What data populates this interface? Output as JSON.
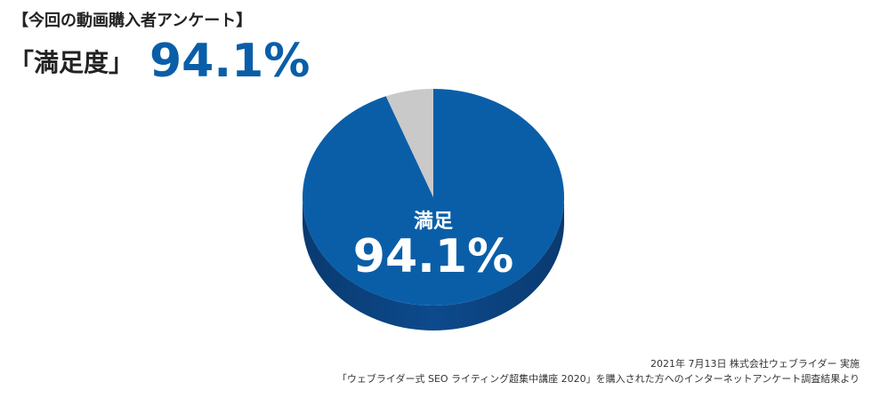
{
  "chart_data": {
    "type": "pie3d",
    "title": "【今回の動画購入者アンケート】",
    "subtitle": "「満足度」",
    "headline": "94.1%",
    "categories": [
      "満足",
      null
    ],
    "values": [
      94.1,
      5.9
    ],
    "value_labels": [
      "94.1%",
      null
    ],
    "colors": [
      "#0a5ea8",
      "#c9c9c9"
    ],
    "side_color": "#0b3f7a",
    "notes": [
      "2021年 7月13日 株式会社ウェブライダー 実施",
      "「ウェブライダー式 SEO ライティング超集中講座 2020」を購入された方へのインターネットアンケート調査結果より"
    ]
  }
}
